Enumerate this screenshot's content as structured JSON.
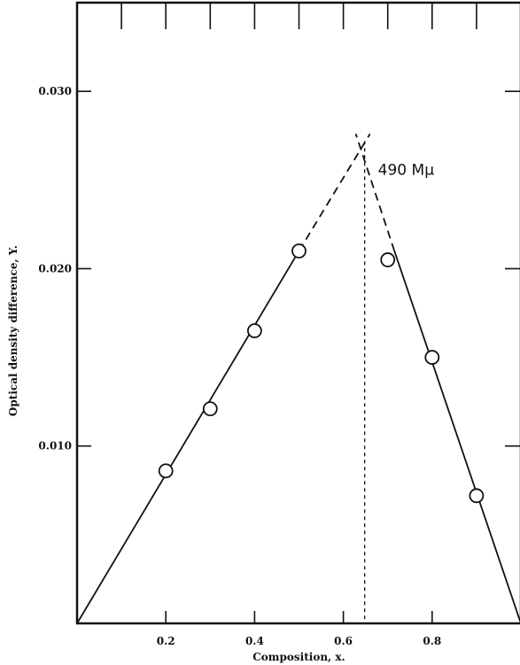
{
  "chart_data": {
    "type": "scatter",
    "xlabel": "Composition, x.",
    "ylabel": "Optical density difference, Y.",
    "xlim": [
      0,
      1.0
    ],
    "ylim": [
      0,
      0.035
    ],
    "x_ticks": [
      {
        "value": 0.2,
        "label": "0.2"
      },
      {
        "value": 0.4,
        "label": "0.4"
      },
      {
        "value": 0.6,
        "label": "0.6"
      },
      {
        "value": 0.8,
        "label": "0.8"
      }
    ],
    "x_minor_ticks": [
      0.1,
      0.3,
      0.5,
      0.7,
      0.9
    ],
    "y_ticks": [
      {
        "value": 0.01,
        "label": "0.010"
      },
      {
        "value": 0.02,
        "label": "0.020"
      },
      {
        "value": 0.03,
        "label": "0.030"
      }
    ],
    "grid": false,
    "series": [
      {
        "marker": "open-circle",
        "points": [
          {
            "x": 0.2,
            "y": 0.0086
          },
          {
            "x": 0.3,
            "y": 0.0121
          },
          {
            "x": 0.4,
            "y": 0.0165
          },
          {
            "x": 0.5,
            "y": 0.021
          },
          {
            "x": 0.7,
            "y": 0.0205
          },
          {
            "x": 0.8,
            "y": 0.015
          },
          {
            "x": 0.9,
            "y": 0.0072
          }
        ]
      }
    ],
    "lines": [
      {
        "id": "left-fit-solid",
        "style": "solid",
        "from": {
          "x": 0.0,
          "y": 0.0
        },
        "to": {
          "x": 0.5,
          "y": 0.021
        }
      },
      {
        "id": "left-fit-extension",
        "style": "dashed",
        "from": {
          "x": 0.5,
          "y": 0.021
        },
        "to": {
          "x": 0.66,
          "y": 0.0276
        }
      },
      {
        "id": "right-fit-solid",
        "style": "solid",
        "from": {
          "x": 0.715,
          "y": 0.021
        },
        "to": {
          "x": 1.0,
          "y": 0.0
        }
      },
      {
        "id": "right-fit-extension",
        "style": "dashed",
        "from": {
          "x": 0.715,
          "y": 0.021
        },
        "to": {
          "x": 0.628,
          "y": 0.0276
        }
      },
      {
        "id": "intersection-drop",
        "style": "dotted",
        "from": {
          "x": 0.648,
          "y": 0.0272
        },
        "to": {
          "x": 0.648,
          "y": 0.0
        }
      }
    ],
    "annotations": [
      {
        "text": "490 Mμ",
        "x": 0.678,
        "y": 0.0253
      }
    ]
  }
}
